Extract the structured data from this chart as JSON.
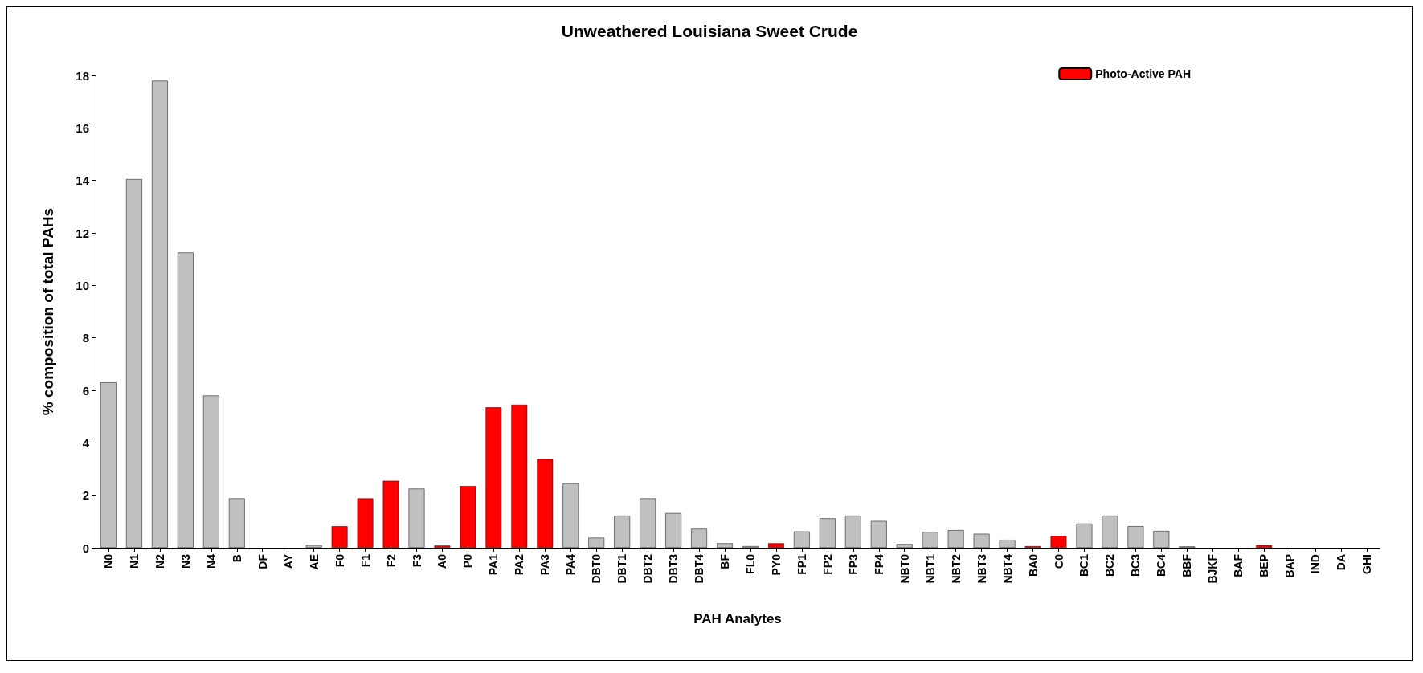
{
  "chart_data": {
    "type": "bar",
    "title": "Unweathered Louisiana Sweet Crude",
    "xlabel": "PAH Analytes",
    "ylabel": "% composition of total PAHs",
    "categories": [
      "N0",
      "N1",
      "N2",
      "N3",
      "N4",
      "B",
      "DF",
      "AY",
      "AE",
      "F0",
      "F1",
      "F2",
      "F3",
      "A0",
      "P0",
      "PA1",
      "PA2",
      "PA3",
      "PA4",
      "DBT0",
      "DBT1",
      "DBT2",
      "DBT3",
      "DBT4",
      "BF",
      "FL0",
      "PY0",
      "FP1",
      "FP2",
      "FP3",
      "FP4",
      "NBT0",
      "NBT1",
      "NBT2",
      "NBT3",
      "NBT4",
      "BA0",
      "C0",
      "BC1",
      "BC2",
      "BC3",
      "BC4",
      "BBF",
      "BJKF",
      "BAF",
      "BEP",
      "BAP",
      "IND",
      "DA",
      "GHI"
    ],
    "stacked": true,
    "series": [
      {
        "color": "#c0c0c0",
        "values": [
          6.3,
          14.05,
          17.8,
          11.25,
          5.8,
          1.88,
          0,
          0,
          0.1,
          null,
          null,
          null,
          2.25,
          null,
          null,
          null,
          null,
          null,
          2.45,
          0.38,
          1.22,
          1.88,
          1.32,
          0.72,
          0.17,
          0.06,
          null,
          0.62,
          1.12,
          1.22,
          1.02,
          0.14,
          0.6,
          0.67,
          0.53,
          0.3,
          null,
          null,
          0.92,
          1.22,
          0.82,
          0.64,
          0.05,
          0,
          0,
          null,
          0,
          0,
          0,
          0
        ]
      },
      {
        "name": "Photo-Active PAH",
        "color": "#ff0000",
        "values": [
          null,
          null,
          null,
          null,
          null,
          null,
          null,
          null,
          null,
          0.82,
          1.88,
          2.55,
          null,
          0.08,
          2.35,
          5.35,
          5.45,
          3.38,
          null,
          null,
          null,
          null,
          null,
          null,
          null,
          null,
          0.17,
          null,
          null,
          null,
          null,
          null,
          null,
          null,
          null,
          null,
          0.06,
          0.45,
          null,
          null,
          null,
          null,
          null,
          null,
          null,
          0.1,
          null,
          null,
          null,
          null
        ]
      }
    ],
    "ylim": [
      0,
      18
    ],
    "yticks": [
      0,
      2,
      4,
      6,
      8,
      10,
      12,
      14,
      16,
      18
    ],
    "grid": false,
    "legend": "top right"
  }
}
